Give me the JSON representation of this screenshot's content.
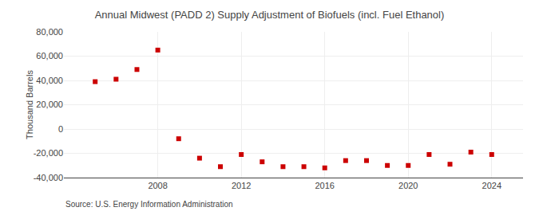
{
  "chart_data": {
    "type": "scatter",
    "title": "Annual Midwest (PADD 2) Supply Adjustment of Biofuels (incl. Fuel Ethanol)",
    "ylabel": "Thousand Barrels",
    "annotations": [
      "Source: U.S. Energy Information Administration"
    ],
    "x": [
      2005,
      2006,
      2007,
      2008,
      2009,
      2010,
      2011,
      2012,
      2013,
      2014,
      2015,
      2016,
      2017,
      2018,
      2019,
      2020,
      2021,
      2022,
      2023,
      2024
    ],
    "values": [
      39000,
      41000,
      49000,
      65000,
      -8000,
      -24000,
      -31000,
      -21000,
      -27000,
      -31000,
      -31000,
      -32000,
      -26000,
      -26000,
      -30000,
      -30000,
      -21000,
      -29000,
      -19000,
      -21000
    ],
    "color": "#cc0000",
    "marker": "square",
    "xlim": [
      2003.5,
      2025.5
    ],
    "xticks": [
      2008,
      2012,
      2016,
      2020,
      2024
    ],
    "ylim": [
      -40000,
      80000
    ],
    "yticks": [
      {
        "value": -40000,
        "label": "-40,000"
      },
      {
        "value": -20000,
        "label": "-20,000"
      },
      0,
      {
        "value": 20000,
        "label": "20,000"
      },
      {
        "value": 40000,
        "label": "40,000"
      },
      {
        "value": 60000,
        "label": "60,000"
      },
      {
        "value": 80000,
        "label": "80,000"
      }
    ],
    "grid": true
  }
}
